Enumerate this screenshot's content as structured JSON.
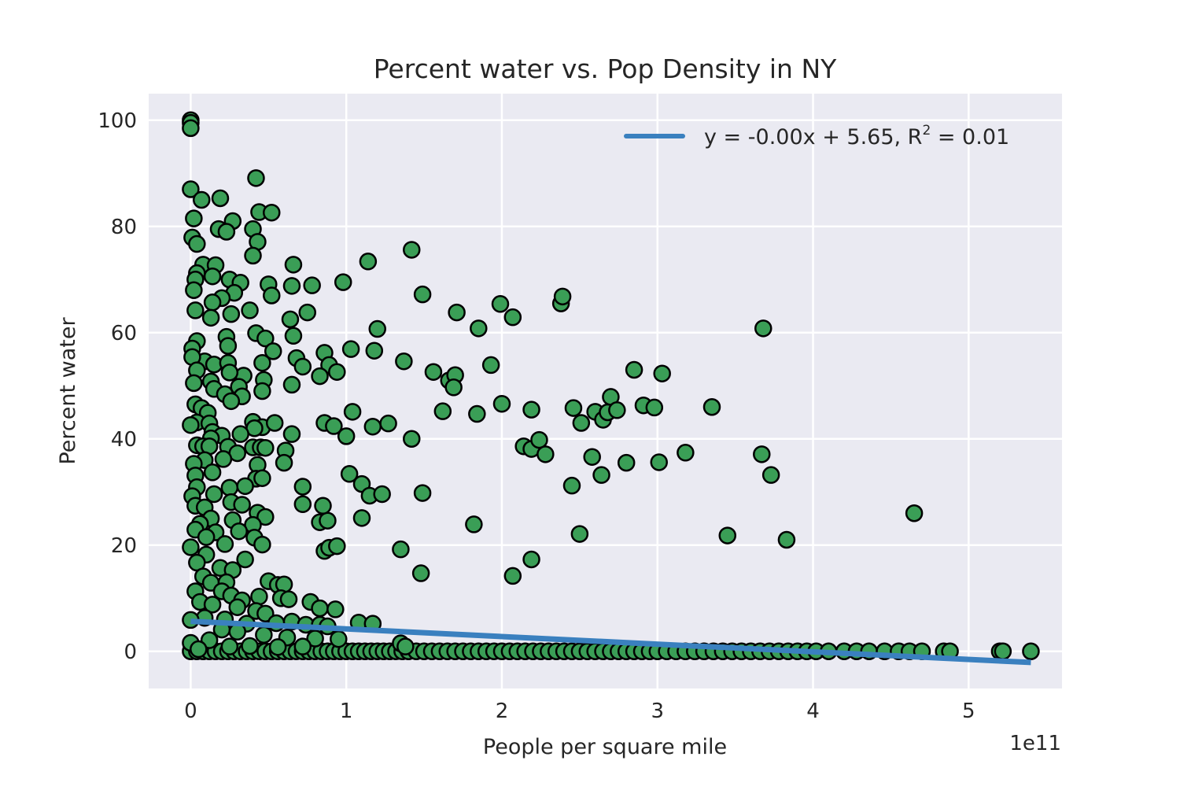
{
  "chart_data": {
    "type": "scatter",
    "title": "Percent water vs. Pop Density in NY",
    "xlabel": "People per square mile",
    "ylabel": "Percent water",
    "x_offset_label": "1e11",
    "x_ticks": [
      "0",
      "1",
      "2",
      "3",
      "4",
      "5"
    ],
    "y_ticks": [
      "0",
      "20",
      "40",
      "60",
      "80",
      "100"
    ],
    "xlim": [
      -0.27,
      5.6
    ],
    "ylim": [
      -7,
      105
    ],
    "x_unit": "1e11 people per square mile",
    "grid": true,
    "background": "#eaeaf2",
    "point_color": "#3a9e56",
    "point_edge_color": "#000000",
    "legend": {
      "placement": "top-right",
      "entries": [
        {
          "label": "y = -0.00x + 5.65, R",
          "superscript": "2",
          "suffix": " = 0.01",
          "color": "#3a80bf"
        }
      ]
    },
    "series": [
      {
        "type": "line",
        "color": "#3a80bf",
        "x": [
          0,
          5.4
        ],
        "y": [
          5.65,
          -2.1
        ]
      },
      {
        "type": "scatter",
        "points": [
          [
            0,
            100
          ],
          [
            0,
            99.5
          ],
          [
            0,
            98.5
          ],
          [
            0,
            87
          ],
          [
            0.07,
            85
          ],
          [
            0.19,
            85.3
          ],
          [
            0.02,
            81.5
          ],
          [
            0.27,
            81
          ],
          [
            0.42,
            89.1
          ],
          [
            0.44,
            82.7
          ],
          [
            0.52,
            82.6
          ],
          [
            0.18,
            79.5
          ],
          [
            0.23,
            79
          ],
          [
            0.4,
            79.5
          ],
          [
            0.43,
            77.1
          ],
          [
            0.01,
            77.9
          ],
          [
            0.04,
            76.7
          ],
          [
            0.4,
            74.5
          ],
          [
            0.08,
            72.8
          ],
          [
            0.16,
            72.7
          ],
          [
            0.66,
            72.8
          ],
          [
            0.04,
            71.2
          ],
          [
            0.14,
            70.6
          ],
          [
            0.03,
            70
          ],
          [
            0.25,
            70
          ],
          [
            0.32,
            69.4
          ],
          [
            0.5,
            69.1
          ],
          [
            0.65,
            68.8
          ],
          [
            0.78,
            68.9
          ],
          [
            0.98,
            69.5
          ],
          [
            1.14,
            73.4
          ],
          [
            0.28,
            67.5
          ],
          [
            0.52,
            67.0
          ],
          [
            0.02,
            68
          ],
          [
            0.2,
            66.5
          ],
          [
            0.14,
            65.7
          ],
          [
            0.03,
            64.2
          ],
          [
            0.38,
            64.2
          ],
          [
            0.26,
            63.5
          ],
          [
            0.13,
            62.8
          ],
          [
            0.75,
            63.8
          ],
          [
            0.64,
            62.5
          ],
          [
            0.66,
            59.4
          ],
          [
            0.42,
            59.9
          ],
          [
            0.48,
            58.9
          ],
          [
            0.23,
            59.2
          ],
          [
            0.04,
            58.4
          ],
          [
            0.24,
            57.5
          ],
          [
            0.01,
            57
          ],
          [
            1.03,
            56.9
          ],
          [
            1.18,
            56.6
          ],
          [
            0.68,
            55.2
          ],
          [
            0.86,
            56.2
          ],
          [
            0.53,
            56.5
          ],
          [
            0.09,
            54.6
          ],
          [
            0.15,
            54
          ],
          [
            0.24,
            54.3
          ],
          [
            0.46,
            54.3
          ],
          [
            0.01,
            55.4
          ],
          [
            0.72,
            53.6
          ],
          [
            0.89,
            53.9
          ],
          [
            0.94,
            52.6
          ],
          [
            0.04,
            52.9
          ],
          [
            0.34,
            51.9
          ],
          [
            0.25,
            52.5
          ],
          [
            0.83,
            51.8
          ],
          [
            0.47,
            51.1
          ],
          [
            0.13,
            50.8
          ],
          [
            0.02,
            50.5
          ],
          [
            0.65,
            50.2
          ],
          [
            0.31,
            49.8
          ],
          [
            0.15,
            49.4
          ],
          [
            0.46,
            49.0
          ],
          [
            0.22,
            48.4
          ],
          [
            0.33,
            48.0
          ],
          [
            0.03,
            46.5
          ],
          [
            0.07,
            45.8
          ],
          [
            0.11,
            44.9
          ],
          [
            0.26,
            47.1
          ],
          [
            0.04,
            43.1
          ],
          [
            0.12,
            42.9
          ],
          [
            0.4,
            43.2
          ],
          [
            0.46,
            42.2
          ],
          [
            0.54,
            43.0
          ],
          [
            0.41,
            42.0
          ],
          [
            0.0,
            42.6
          ],
          [
            0.14,
            41.3
          ],
          [
            0.2,
            40.6
          ],
          [
            0.13,
            40.1
          ],
          [
            0.32,
            40.9
          ],
          [
            0.65,
            40.9
          ],
          [
            0.61,
            37.8
          ],
          [
            0.6,
            35.5
          ],
          [
            0.04,
            38.8
          ],
          [
            0.24,
            38.5
          ],
          [
            0.4,
            38.4
          ],
          [
            0.45,
            38.4
          ],
          [
            0.48,
            38.3
          ],
          [
            0.08,
            38.6
          ],
          [
            0.12,
            38.6
          ],
          [
            0.3,
            37.3
          ],
          [
            0.21,
            36.2
          ],
          [
            0.09,
            36.0
          ],
          [
            0.43,
            35.1
          ],
          [
            0.02,
            35.3
          ],
          [
            0.14,
            33.7
          ],
          [
            0.03,
            33.1
          ],
          [
            0.42,
            32.5
          ],
          [
            0.46,
            32.6
          ],
          [
            0.04,
            30.9
          ],
          [
            0.25,
            30.8
          ],
          [
            0.35,
            31.1
          ],
          [
            0.72,
            31.0
          ],
          [
            0.15,
            29.6
          ],
          [
            0.01,
            29.2
          ],
          [
            0.26,
            28.1
          ],
          [
            0.03,
            27.4
          ],
          [
            0.09,
            27.1
          ],
          [
            0.33,
            27.6
          ],
          [
            0.43,
            26.1
          ],
          [
            0.48,
            25.3
          ],
          [
            0.13,
            25.0
          ],
          [
            0.27,
            24.7
          ],
          [
            0.06,
            24.0
          ],
          [
            0.4,
            23.8
          ],
          [
            0.83,
            24.3
          ],
          [
            0.88,
            24.6
          ],
          [
            0.03,
            22.9
          ],
          [
            0.16,
            22.4
          ],
          [
            0.31,
            22.6
          ],
          [
            0.1,
            21.5
          ],
          [
            0.41,
            21.4
          ],
          [
            0.46,
            20.1
          ],
          [
            0.0,
            19.6
          ],
          [
            0.22,
            20.2
          ],
          [
            0.86,
            18.9
          ],
          [
            0.89,
            19.5
          ],
          [
            0.1,
            18.2
          ],
          [
            0.35,
            17.3
          ],
          [
            0.04,
            16.7
          ],
          [
            0.19,
            15.7
          ],
          [
            0.27,
            15.3
          ],
          [
            0.08,
            14.1
          ],
          [
            0.13,
            12.9
          ],
          [
            0.23,
            13.0
          ],
          [
            0.5,
            13.2
          ],
          [
            0.56,
            12.5
          ],
          [
            0.6,
            12.6
          ],
          [
            0.03,
            11.3
          ],
          [
            0.2,
            11.3
          ],
          [
            0.26,
            10.5
          ],
          [
            0.44,
            10.3
          ],
          [
            0.58,
            10.0
          ],
          [
            0.63,
            9.8
          ],
          [
            0.33,
            9.6
          ],
          [
            0.06,
            9.3
          ],
          [
            0.77,
            9.3
          ],
          [
            0.83,
            8.1
          ],
          [
            0.93,
            7.9
          ],
          [
            0.14,
            8.8
          ],
          [
            0.3,
            8.3
          ],
          [
            0.42,
            7.6
          ],
          [
            0.48,
            7.1
          ],
          [
            0.09,
            6.3
          ],
          [
            0.22,
            6.0
          ],
          [
            0.0,
            5.9
          ],
          [
            0.36,
            5.2
          ],
          [
            0.55,
            5.3
          ],
          [
            0.65,
            5.6
          ],
          [
            0.74,
            5.0
          ],
          [
            0.83,
            5.0
          ],
          [
            0.88,
            4.7
          ],
          [
            1.08,
            5.4
          ],
          [
            1.17,
            5.2
          ],
          [
            0.2,
            4.1
          ],
          [
            0.3,
            3.7
          ],
          [
            0.47,
            3.1
          ],
          [
            0.62,
            2.6
          ],
          [
            0.8,
            2.4
          ],
          [
            0.95,
            2.3
          ],
          [
            0.12,
            2.1
          ],
          [
            0.0,
            1.6
          ],
          [
            0.25,
            0.9
          ],
          [
            0.38,
            1.0
          ],
          [
            0.56,
            0.8
          ],
          [
            0.72,
            0.9
          ],
          [
            1.35,
            1.5
          ],
          [
            1.38,
            0.9
          ],
          [
            0.05,
            0.4
          ],
          [
            1.42,
            75.6
          ],
          [
            1.49,
            67.2
          ],
          [
            1.71,
            63.8
          ],
          [
            1.85,
            60.8
          ],
          [
            1.99,
            65.4
          ],
          [
            2.07,
            62.9
          ],
          [
            2.38,
            65.5
          ],
          [
            2.39,
            66.8
          ],
          [
            1.2,
            60.7
          ],
          [
            1.37,
            54.6
          ],
          [
            1.56,
            52.6
          ],
          [
            1.66,
            51.0
          ],
          [
            1.7,
            52.0
          ],
          [
            1.69,
            49.7
          ],
          [
            1.93,
            53.9
          ],
          [
            1.62,
            45.2
          ],
          [
            1.84,
            44.7
          ],
          [
            2.0,
            46.6
          ],
          [
            2.19,
            45.5
          ],
          [
            2.46,
            45.8
          ],
          [
            2.51,
            43.0
          ],
          [
            2.6,
            45.1
          ],
          [
            2.65,
            43.6
          ],
          [
            2.68,
            45.0
          ],
          [
            2.7,
            47.9
          ],
          [
            2.74,
            45.4
          ],
          [
            2.85,
            53.0
          ],
          [
            2.91,
            46.3
          ],
          [
            2.98,
            45.9
          ],
          [
            3.03,
            52.3
          ],
          [
            3.35,
            46.0
          ],
          [
            3.68,
            60.8
          ],
          [
            1.04,
            45.1
          ],
          [
            0.86,
            43.0
          ],
          [
            0.92,
            42.4
          ],
          [
            1.0,
            40.5
          ],
          [
            1.17,
            42.3
          ],
          [
            1.27,
            42.9
          ],
          [
            1.42,
            40.0
          ],
          [
            2.14,
            38.6
          ],
          [
            2.19,
            38.1
          ],
          [
            2.24,
            39.8
          ],
          [
            2.28,
            37.1
          ],
          [
            2.58,
            36.6
          ],
          [
            2.64,
            33.2
          ],
          [
            2.8,
            35.5
          ],
          [
            3.01,
            35.6
          ],
          [
            3.18,
            37.4
          ],
          [
            3.67,
            37.1
          ],
          [
            3.73,
            33.2
          ],
          [
            1.02,
            33.4
          ],
          [
            1.1,
            31.5
          ],
          [
            1.15,
            29.3
          ],
          [
            1.23,
            29.6
          ],
          [
            1.49,
            29.8
          ],
          [
            2.45,
            31.2
          ],
          [
            1.1,
            25.1
          ],
          [
            1.82,
            23.9
          ],
          [
            1.35,
            19.2
          ],
          [
            1.48,
            14.7
          ],
          [
            2.19,
            17.3
          ],
          [
            2.07,
            14.2
          ],
          [
            2.5,
            22.1
          ],
          [
            3.45,
            21.8
          ],
          [
            3.83,
            21.0
          ],
          [
            4.65,
            26.0
          ],
          [
            0.85,
            27.4
          ],
          [
            0.94,
            19.8
          ],
          [
            0.72,
            27.7
          ]
        ],
        "zero_points_x": [
          0.0,
          0.04,
          0.08,
          0.12,
          0.16,
          0.2,
          0.24,
          0.28,
          0.32,
          0.36,
          0.4,
          0.44,
          0.48,
          0.52,
          0.56,
          0.6,
          0.64,
          0.68,
          0.72,
          0.76,
          0.8,
          0.84,
          0.88,
          0.92,
          0.96,
          1.0,
          1.04,
          1.08,
          1.12,
          1.16,
          1.2,
          1.24,
          1.28,
          1.32,
          1.36,
          1.4,
          1.45,
          1.5,
          1.55,
          1.6,
          1.65,
          1.7,
          1.75,
          1.8,
          1.85,
          1.9,
          1.95,
          2.0,
          2.05,
          2.1,
          2.15,
          2.2,
          2.25,
          2.3,
          2.35,
          2.4,
          2.45,
          2.5,
          2.55,
          2.6,
          2.65,
          2.7,
          2.75,
          2.8,
          2.85,
          2.9,
          2.95,
          3.0,
          3.06,
          3.12,
          3.18,
          3.24,
          3.3,
          3.36,
          3.42,
          3.48,
          3.54,
          3.6,
          3.66,
          3.72,
          3.78,
          3.84,
          3.9,
          3.96,
          4.02,
          4.1,
          4.2,
          4.28,
          4.36,
          4.46,
          4.55,
          4.62,
          4.7,
          4.84,
          4.88,
          5.2,
          5.22,
          5.4
        ]
      }
    ]
  }
}
